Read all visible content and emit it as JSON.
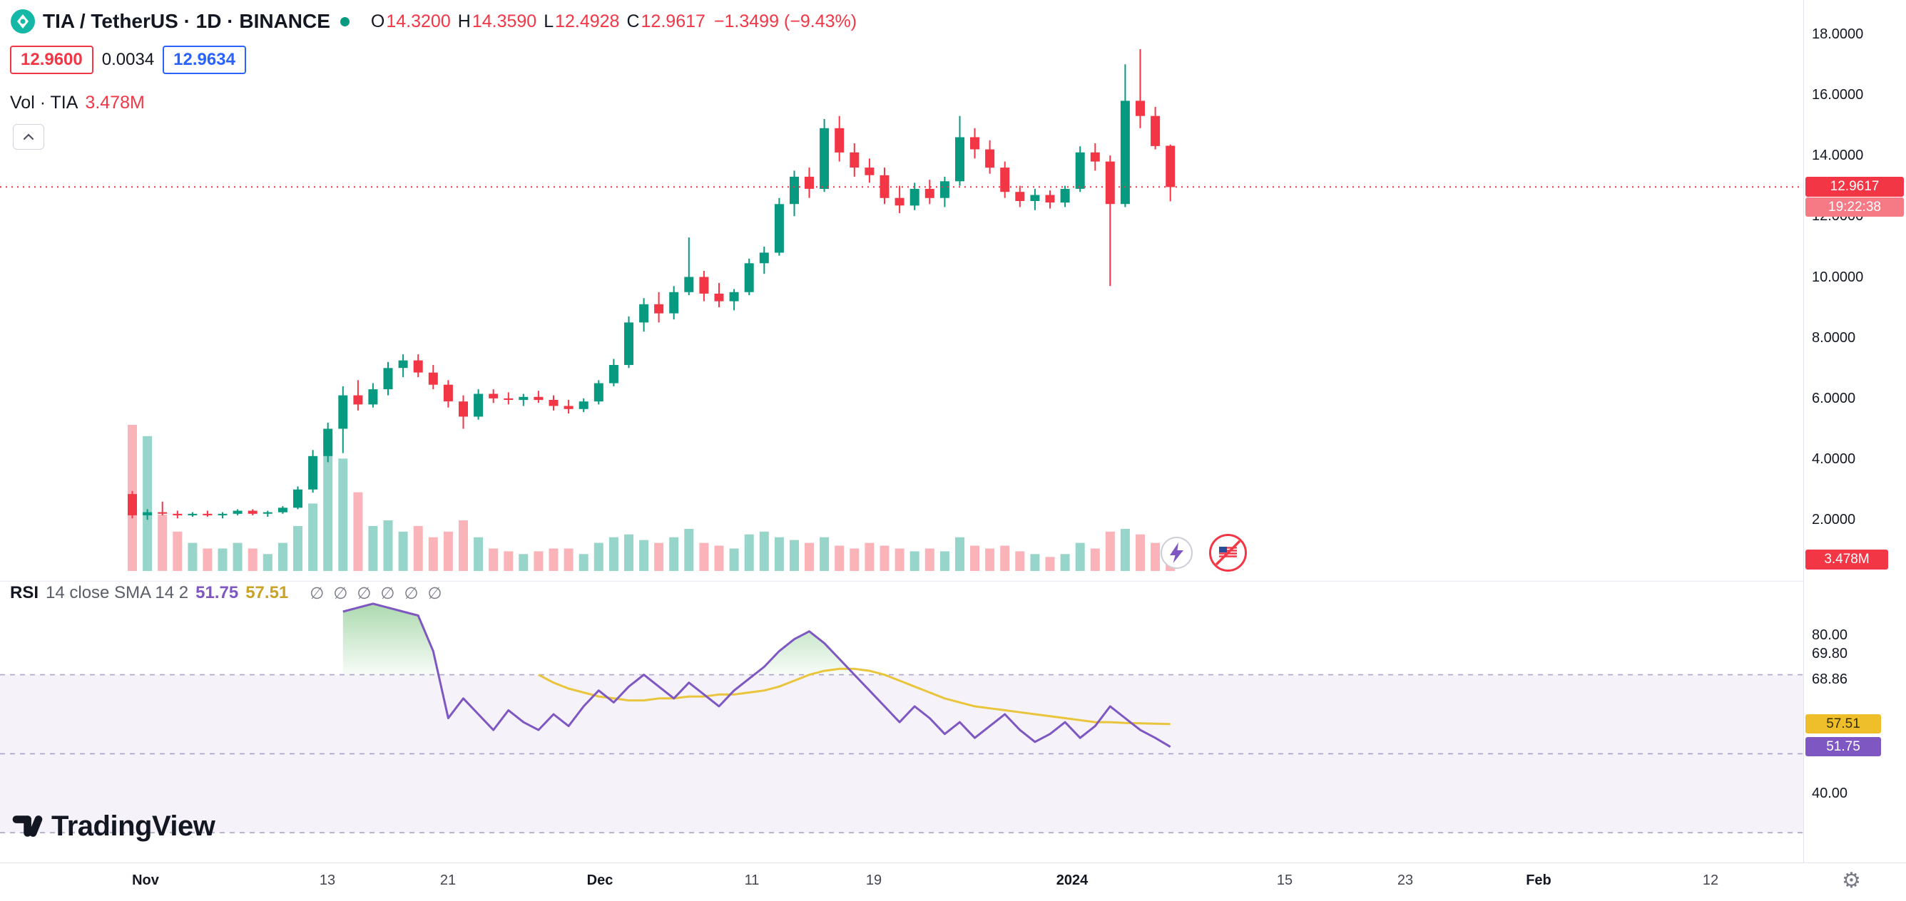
{
  "header": {
    "symbol_title": "TIA / TetherUS · 1D · BINANCE",
    "ohlc": {
      "o_label": "O",
      "o": "14.3200",
      "h_label": "H",
      "h": "14.3590",
      "l_label": "L",
      "l": "12.4928",
      "c_label": "C",
      "c": "12.9617",
      "change": "−1.3499 (−9.43%)"
    },
    "bid": "12.9600",
    "spread": "0.0034",
    "ask": "12.9634",
    "volume_label": "Vol · TIA",
    "volume_value": "3.478M"
  },
  "price_axis": {
    "current_price_badge": "12.9617",
    "countdown": "19:22:38",
    "volume_badge": "3.478M"
  },
  "rsi_panel": {
    "legend_title": "RSI",
    "legend_params": "14 close SMA 14 2",
    "rsi_value": "51.75",
    "sma_value": "57.51",
    "placeholder_symbols": [
      "∅",
      "∅",
      "∅",
      "∅",
      "∅",
      "∅"
    ],
    "axis_labels": [
      "80.00",
      "69.80",
      "68.86",
      "40.00"
    ],
    "rsi_badge": "51.75",
    "sma_badge": "57.51"
  },
  "watermark": {
    "brand": "TradingView"
  },
  "colors": {
    "up": "#089981",
    "down": "#F23645",
    "accent_blue": "#2962FF",
    "rsi_purple": "#7E57C2",
    "rsi_yellow": "#E8C53A",
    "band_fill": "rgba(126,87,194,0.08)"
  },
  "chart_data": {
    "type": "candlestick",
    "title": "TIA / TetherUS 1D BINANCE",
    "price_ticks": [
      {
        "label": "18.0000",
        "v": 18
      },
      {
        "label": "16.0000",
        "v": 16
      },
      {
        "label": "14.0000",
        "v": 14
      },
      {
        "label": "12.0000",
        "v": 12
      },
      {
        "label": "10.0000",
        "v": 10
      },
      {
        "label": "8.0000",
        "v": 8
      },
      {
        "label": "6.0000",
        "v": 6
      },
      {
        "label": "4.0000",
        "v": 4
      },
      {
        "label": "2.0000",
        "v": 2
      }
    ],
    "current_price": 12.9617,
    "candles": [
      [
        2.85,
        2.95,
        2.05,
        2.15
      ],
      [
        2.15,
        2.35,
        2.0,
        2.25
      ],
      [
        2.25,
        2.6,
        2.15,
        2.2
      ],
      [
        2.2,
        2.3,
        2.05,
        2.15
      ],
      [
        2.15,
        2.25,
        2.1,
        2.2
      ],
      [
        2.2,
        2.3,
        2.1,
        2.15
      ],
      [
        2.15,
        2.25,
        2.05,
        2.2
      ],
      [
        2.2,
        2.35,
        2.15,
        2.3
      ],
      [
        2.3,
        2.35,
        2.15,
        2.2
      ],
      [
        2.2,
        2.3,
        2.1,
        2.25
      ],
      [
        2.25,
        2.45,
        2.2,
        2.4
      ],
      [
        2.4,
        3.1,
        2.35,
        3.0
      ],
      [
        3.0,
        4.3,
        2.9,
        4.1
      ],
      [
        4.1,
        5.2,
        3.9,
        5.0
      ],
      [
        5.0,
        6.4,
        4.2,
        6.1
      ],
      [
        6.1,
        6.6,
        5.6,
        5.8
      ],
      [
        5.8,
        6.5,
        5.7,
        6.3
      ],
      [
        6.3,
        7.2,
        6.1,
        7.0
      ],
      [
        7.0,
        7.45,
        6.7,
        7.25
      ],
      [
        7.25,
        7.45,
        6.7,
        6.85
      ],
      [
        6.85,
        7.1,
        6.3,
        6.45
      ],
      [
        6.45,
        6.6,
        5.7,
        5.9
      ],
      [
        5.9,
        6.1,
        5.0,
        5.4
      ],
      [
        5.4,
        6.3,
        5.3,
        6.15
      ],
      [
        6.15,
        6.3,
        5.85,
        6.0
      ],
      [
        6.0,
        6.2,
        5.8,
        5.95
      ],
      [
        5.95,
        6.15,
        5.75,
        6.05
      ],
      [
        6.05,
        6.25,
        5.85,
        5.95
      ],
      [
        5.95,
        6.1,
        5.6,
        5.75
      ],
      [
        5.75,
        5.95,
        5.5,
        5.65
      ],
      [
        5.65,
        6.0,
        5.55,
        5.9
      ],
      [
        5.9,
        6.6,
        5.8,
        6.5
      ],
      [
        6.5,
        7.3,
        6.4,
        7.1
      ],
      [
        7.1,
        8.7,
        7.0,
        8.5
      ],
      [
        8.5,
        9.3,
        8.2,
        9.1
      ],
      [
        9.1,
        9.5,
        8.5,
        8.8
      ],
      [
        8.8,
        9.7,
        8.6,
        9.5
      ],
      [
        9.5,
        11.3,
        9.4,
        10.0
      ],
      [
        10.0,
        10.2,
        9.2,
        9.45
      ],
      [
        9.45,
        9.8,
        9.0,
        9.2
      ],
      [
        9.2,
        9.6,
        8.9,
        9.5
      ],
      [
        9.5,
        10.6,
        9.4,
        10.45
      ],
      [
        10.45,
        11.0,
        10.1,
        10.8
      ],
      [
        10.8,
        12.6,
        10.7,
        12.4
      ],
      [
        12.4,
        13.5,
        12.0,
        13.3
      ],
      [
        13.3,
        13.6,
        12.6,
        12.9
      ],
      [
        12.9,
        15.2,
        12.8,
        14.9
      ],
      [
        14.9,
        15.3,
        13.8,
        14.1
      ],
      [
        14.1,
        14.4,
        13.3,
        13.6
      ],
      [
        13.6,
        13.9,
        13.1,
        13.35
      ],
      [
        13.35,
        13.6,
        12.4,
        12.6
      ],
      [
        12.6,
        13.0,
        12.1,
        12.35
      ],
      [
        12.35,
        13.1,
        12.2,
        12.9
      ],
      [
        12.9,
        13.2,
        12.4,
        12.6
      ],
      [
        12.6,
        13.3,
        12.3,
        13.15
      ],
      [
        13.15,
        15.3,
        13.0,
        14.6
      ],
      [
        14.6,
        14.9,
        13.9,
        14.2
      ],
      [
        14.2,
        14.5,
        13.4,
        13.6
      ],
      [
        13.6,
        13.8,
        12.6,
        12.8
      ],
      [
        12.8,
        13.0,
        12.3,
        12.5
      ],
      [
        12.5,
        12.9,
        12.2,
        12.7
      ],
      [
        12.7,
        12.85,
        12.25,
        12.45
      ],
      [
        12.45,
        13.0,
        12.3,
        12.9
      ],
      [
        12.9,
        14.3,
        12.8,
        14.1
      ],
      [
        14.1,
        14.4,
        13.5,
        13.8
      ],
      [
        13.8,
        14.0,
        9.7,
        12.4
      ],
      [
        12.4,
        17.0,
        12.3,
        15.8
      ],
      [
        15.8,
        17.5,
        14.9,
        15.3
      ],
      [
        15.3,
        15.6,
        14.2,
        14.31
      ],
      [
        14.32,
        14.36,
        12.49,
        12.96
      ]
    ],
    "volumes": [
      26,
      24,
      10,
      7,
      5,
      4,
      4,
      5,
      4,
      3,
      5,
      8,
      12,
      24,
      20,
      14,
      8,
      9,
      7,
      8,
      6,
      7,
      9,
      6,
      4,
      3.5,
      3,
      3.5,
      4,
      4,
      3,
      5,
      6,
      6.5,
      5.5,
      5,
      6,
      7.5,
      5,
      4.5,
      4,
      6.5,
      7,
      6,
      5.5,
      5,
      6,
      4.5,
      4,
      5,
      4.5,
      4,
      3.5,
      4,
      3.5,
      6,
      4.5,
      4,
      4.5,
      3.5,
      3,
      2.5,
      3,
      5,
      4,
      7,
      7.5,
      6.5,
      5,
      3.478
    ],
    "rsi": {
      "start_index": 14,
      "values": [
        86,
        87,
        88,
        87,
        86,
        85,
        76,
        59,
        64,
        60,
        56,
        61,
        58,
        56,
        60,
        57,
        62,
        66,
        63,
        67,
        70,
        67,
        64,
        68,
        65,
        62,
        66,
        69,
        72,
        76,
        79,
        81,
        78,
        74,
        70,
        66,
        62,
        58,
        62,
        59,
        55,
        58,
        54,
        57,
        60,
        56,
        53,
        55,
        58,
        54,
        57,
        62,
        59,
        56,
        54,
        51.75
      ]
    },
    "rsi_sma": {
      "start_index": 27,
      "values": [
        70,
        68,
        66.5,
        65.5,
        64.5,
        64,
        63.5,
        63.5,
        64,
        64,
        64.5,
        64.5,
        65,
        65,
        65.5,
        66,
        67,
        68.5,
        70,
        71,
        71.5,
        71.5,
        71,
        70,
        68.5,
        67,
        65.5,
        64,
        63,
        62,
        61.5,
        61,
        60.5,
        60,
        59.5,
        59,
        58.5,
        58,
        58,
        57.8,
        57.7,
        57.6,
        57.51
      ]
    },
    "rsi_levels": [
      70,
      50,
      30
    ],
    "time_labels": [
      {
        "t": "Nov",
        "i": 1.2,
        "major": true
      },
      {
        "t": "13",
        "i": 13.3,
        "major": false
      },
      {
        "t": "21",
        "i": 21.3,
        "major": false
      },
      {
        "t": "Dec",
        "i": 31.4,
        "major": true
      },
      {
        "t": "11",
        "i": 41.5,
        "major": false
      },
      {
        "t": "19",
        "i": 49.6,
        "major": false
      },
      {
        "t": "2024",
        "i": 62.8,
        "major": true
      },
      {
        "t": "15",
        "i": 76.9,
        "major": false
      },
      {
        "t": "23",
        "i": 84.9,
        "major": false
      },
      {
        "t": "Feb",
        "i": 93.8,
        "major": true
      },
      {
        "t": "12",
        "i": 105.2,
        "major": false
      }
    ]
  }
}
